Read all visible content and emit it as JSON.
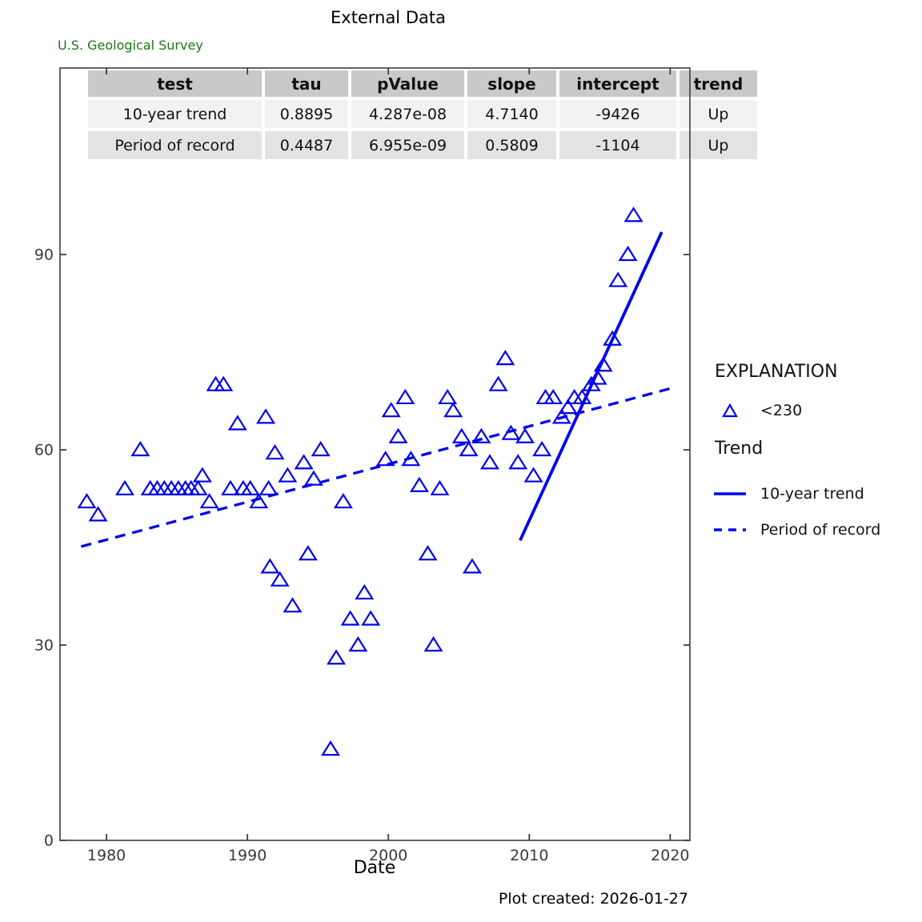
{
  "page": {
    "agency": "U.S. Geological Survey",
    "footer": "Plot created: 2026-01-27"
  },
  "stats_table": {
    "headers": [
      "test",
      "tau",
      "pValue",
      "slope",
      "intercept",
      "trend"
    ],
    "rows": [
      [
        "10-year trend",
        "0.8895",
        "4.287e-08",
        "4.7140",
        "-9426",
        "Up"
      ],
      [
        "Period of record",
        "0.4487",
        "6.955e-09",
        "0.5809",
        "-1104",
        "Up"
      ]
    ]
  },
  "legend": {
    "heading": "EXPLANATION",
    "marker_label": "<230",
    "trend_heading": "Trend",
    "solid_label": "10-year trend",
    "dashed_label": "Period of record"
  },
  "colors": {
    "series_blue": "#0000f0",
    "axis_gray": "#3d3d3d",
    "tick_text": "#3a3a3a",
    "usgs_green": "#157a15"
  },
  "chart_data": {
    "type": "scatter",
    "title": "External Data",
    "xlabel": "Date",
    "ylabel": "",
    "xlim": [
      1976.7,
      2021.4
    ],
    "ylim": [
      0,
      118.65
    ],
    "x_ticks": [
      1980,
      1990,
      2000,
      2010,
      2020
    ],
    "y_ticks": [
      0,
      30,
      60,
      90
    ],
    "grid": false,
    "legend_position": "right",
    "marker": "open-triangle",
    "series_name": "<230",
    "points": [
      [
        1978.6,
        52
      ],
      [
        1979.4,
        50
      ],
      [
        1981.3,
        54
      ],
      [
        1982.4,
        60
      ],
      [
        1983.1,
        54
      ],
      [
        1983.6,
        54
      ],
      [
        1984.1,
        54
      ],
      [
        1984.6,
        54
      ],
      [
        1985.1,
        54
      ],
      [
        1985.6,
        54
      ],
      [
        1986.0,
        54
      ],
      [
        1986.5,
        54
      ],
      [
        1986.8,
        56
      ],
      [
        1987.3,
        52
      ],
      [
        1987.75,
        70
      ],
      [
        1988.3,
        70
      ],
      [
        1988.8,
        54
      ],
      [
        1989.3,
        64
      ],
      [
        1989.7,
        54
      ],
      [
        1990.2,
        54
      ],
      [
        1990.8,
        52
      ],
      [
        1991.3,
        65
      ],
      [
        1991.5,
        54
      ],
      [
        1991.6,
        42
      ],
      [
        1991.95,
        59.5
      ],
      [
        1992.3,
        40
      ],
      [
        1992.85,
        56
      ],
      [
        1993.2,
        36
      ],
      [
        1994.0,
        58
      ],
      [
        1994.3,
        44
      ],
      [
        1994.7,
        55.5
      ],
      [
        1995.2,
        60
      ],
      [
        1995.9,
        14
      ],
      [
        1996.3,
        28
      ],
      [
        1996.8,
        52
      ],
      [
        1997.3,
        34
      ],
      [
        1997.85,
        30
      ],
      [
        1998.3,
        38
      ],
      [
        1998.75,
        34
      ],
      [
        1999.8,
        58.5
      ],
      [
        2000.2,
        66
      ],
      [
        2000.7,
        62
      ],
      [
        2001.2,
        68
      ],
      [
        2001.6,
        58.5
      ],
      [
        2002.2,
        54.5
      ],
      [
        2002.8,
        44
      ],
      [
        2003.2,
        30
      ],
      [
        2003.65,
        54
      ],
      [
        2004.2,
        68
      ],
      [
        2004.6,
        66
      ],
      [
        2005.2,
        62
      ],
      [
        2005.7,
        60
      ],
      [
        2005.95,
        42
      ],
      [
        2006.6,
        62
      ],
      [
        2007.2,
        58
      ],
      [
        2007.8,
        70
      ],
      [
        2008.3,
        74
      ],
      [
        2008.7,
        62.5
      ],
      [
        2009.2,
        58
      ],
      [
        2009.7,
        62
      ],
      [
        2010.3,
        56
      ],
      [
        2010.9,
        60
      ],
      [
        2011.15,
        68
      ],
      [
        2011.7,
        68
      ],
      [
        2012.3,
        65
      ],
      [
        2012.75,
        66.5
      ],
      [
        2013.2,
        68
      ],
      [
        2013.75,
        68
      ],
      [
        2014.4,
        70
      ],
      [
        2014.85,
        71
      ],
      [
        2015.25,
        73
      ],
      [
        2015.9,
        77
      ],
      [
        2016.3,
        86
      ],
      [
        2017.0,
        90
      ],
      [
        2017.4,
        96
      ]
    ],
    "trend_lines": [
      {
        "name": "10-year trend",
        "style": "solid",
        "slope": 4.714,
        "intercept": -9426,
        "x_start": 2009.35,
        "x_end": 2019.4
      },
      {
        "name": "Period of record",
        "style": "dashed",
        "slope": 0.5809,
        "intercept": -1104,
        "x_start": 1978.2,
        "x_end": 2020.0
      }
    ]
  }
}
